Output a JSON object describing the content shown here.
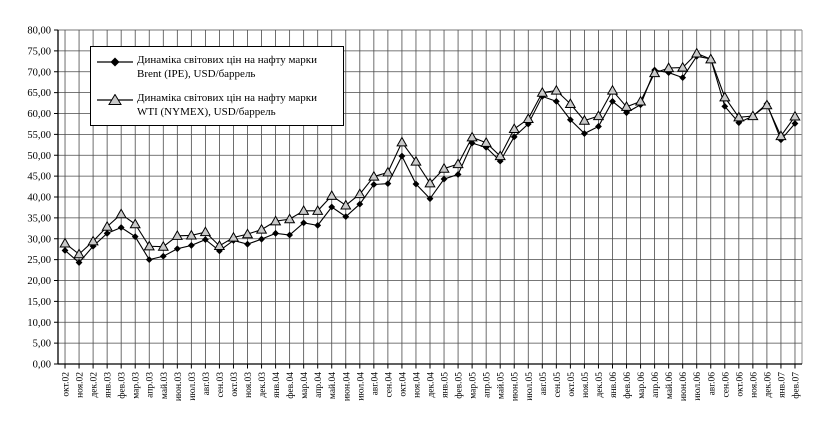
{
  "chart_data": {
    "type": "line",
    "title": "",
    "xlabel": "",
    "ylabel": "",
    "ylim": [
      0,
      80
    ],
    "ytick_step": 5,
    "ytick_labels": [
      "0,00",
      "5,00",
      "10,00",
      "15,00",
      "20,00",
      "25,00",
      "30,00",
      "35,00",
      "40,00",
      "45,00",
      "50,00",
      "55,00",
      "60,00",
      "65,00",
      "70,00",
      "75,00",
      "80,00"
    ],
    "grid": "both",
    "legend_position": "top-left-inside",
    "number_format": "comma-decimal",
    "categories": [
      "окт.02",
      "ноя.02",
      "дек.02",
      "янв.03",
      "фев.03",
      "мар.03",
      "апр.03",
      "май.03",
      "июн.03",
      "июл.03",
      "авг.03",
      "сен.03",
      "окт.03",
      "ноя.03",
      "дек.03",
      "янв.04",
      "фев.04",
      "мар.04",
      "апр.04",
      "май.04",
      "июн.04",
      "июл.04",
      "авг.04",
      "сен.04",
      "окт.04",
      "ноя.04",
      "дек.04",
      "янв.05",
      "фев.05",
      "мар.05",
      "апр.05",
      "май.05",
      "июн.05",
      "июл.05",
      "авг.05",
      "сен.05",
      "окт.05",
      "ноя.05",
      "дек.05",
      "янв.06",
      "фев.06",
      "мар.06",
      "апр.06",
      "май.06",
      "июн.06",
      "июл.06",
      "авг.06",
      "сен.06",
      "окт.06",
      "ноя.06",
      "дек.06",
      "янв.07",
      "фев.07"
    ],
    "series": [
      {
        "name": "Динаміка світових цін на нафту марки Brent (IPE), USD/баррель",
        "marker": "diamond",
        "values": [
          27.2,
          24.3,
          28.2,
          31.3,
          32.7,
          30.5,
          25.0,
          25.8,
          27.6,
          28.4,
          29.8,
          27.1,
          29.6,
          28.7,
          29.9,
          31.3,
          30.9,
          33.8,
          33.2,
          37.6,
          35.3,
          38.3,
          43.0,
          43.2,
          49.8,
          43.1,
          39.6,
          44.3,
          45.4,
          52.9,
          51.9,
          48.6,
          54.4,
          57.5,
          64.1,
          62.9,
          58.5,
          55.2,
          56.9,
          62.9,
          60.2,
          62.1,
          70.4,
          69.8,
          68.6,
          73.7,
          73.1,
          61.7,
          57.8,
          59.4,
          62.3,
          53.7,
          57.6
        ]
      },
      {
        "name": "Динаміка світових цін на нафту марки WTI (NYMEX), USD/баррель",
        "marker": "triangle",
        "values": [
          28.9,
          26.3,
          29.4,
          32.9,
          35.9,
          33.5,
          28.2,
          28.1,
          30.7,
          30.8,
          31.6,
          28.3,
          30.3,
          31.1,
          32.2,
          34.2,
          34.7,
          36.7,
          36.7,
          40.3,
          38.0,
          40.7,
          44.9,
          45.9,
          53.1,
          48.5,
          43.3,
          46.8,
          47.9,
          54.3,
          53.0,
          49.8,
          56.3,
          58.7,
          65.0,
          65.5,
          62.3,
          58.3,
          59.4,
          65.5,
          61.6,
          62.9,
          69.7,
          70.9,
          71.0,
          74.4,
          73.0,
          63.9,
          59.1,
          59.4,
          62.0,
          54.6,
          59.3
        ]
      }
    ]
  },
  "legend": {
    "entries": [
      {
        "lines": [
          "Динаміка світових цін на нафту марки",
          "Brent (IPE), USD/баррель"
        ],
        "marker": "diamond"
      },
      {
        "lines": [
          "Динаміка світових цін на нафту марки",
          "WTI (NYMEX), USD/баррель"
        ],
        "marker": "triangle"
      }
    ]
  },
  "colors": {
    "background": "#ffffff",
    "gridline": "#4a4a4a",
    "axis": "#000000",
    "plot_border_right": "#8c8c8c",
    "series_line": "#000000",
    "diamond_fill": "#000000",
    "triangle_fill": "#c9c9c9",
    "triangle_stroke": "#000000",
    "text": "#000000"
  }
}
